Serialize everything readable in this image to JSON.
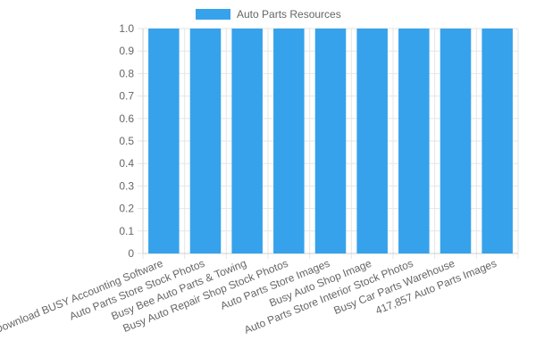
{
  "chart_data": {
    "type": "bar",
    "categories": [
      "Download BUSY Accounting Software",
      "Auto Parts Store Stock Photos",
      "Busy Bee Auto Parts & Towing",
      "Busy Auto Repair Shop Stock Photos",
      "Auto Parts Store Images",
      "Busy Auto Shop Image",
      "Auto Parts Store Interior Stock Photos",
      "Busy Car Parts Warehouse",
      "417,857 Auto Parts Images"
    ],
    "series": [
      {
        "name": "Auto Parts Resources",
        "values": [
          1.0,
          1.0,
          1.0,
          1.0,
          1.0,
          1.0,
          1.0,
          1.0,
          1.0
        ],
        "color": "#36a2eb"
      }
    ],
    "title": "",
    "xlabel": "",
    "ylabel": "",
    "ylim": [
      0,
      1.0
    ],
    "yticks": [
      "0",
      "0.1",
      "0.2",
      "0.3",
      "0.4",
      "0.5",
      "0.6",
      "0.7",
      "0.8",
      "0.9",
      "1.0"
    ],
    "grid": true,
    "legend_position": "top"
  }
}
